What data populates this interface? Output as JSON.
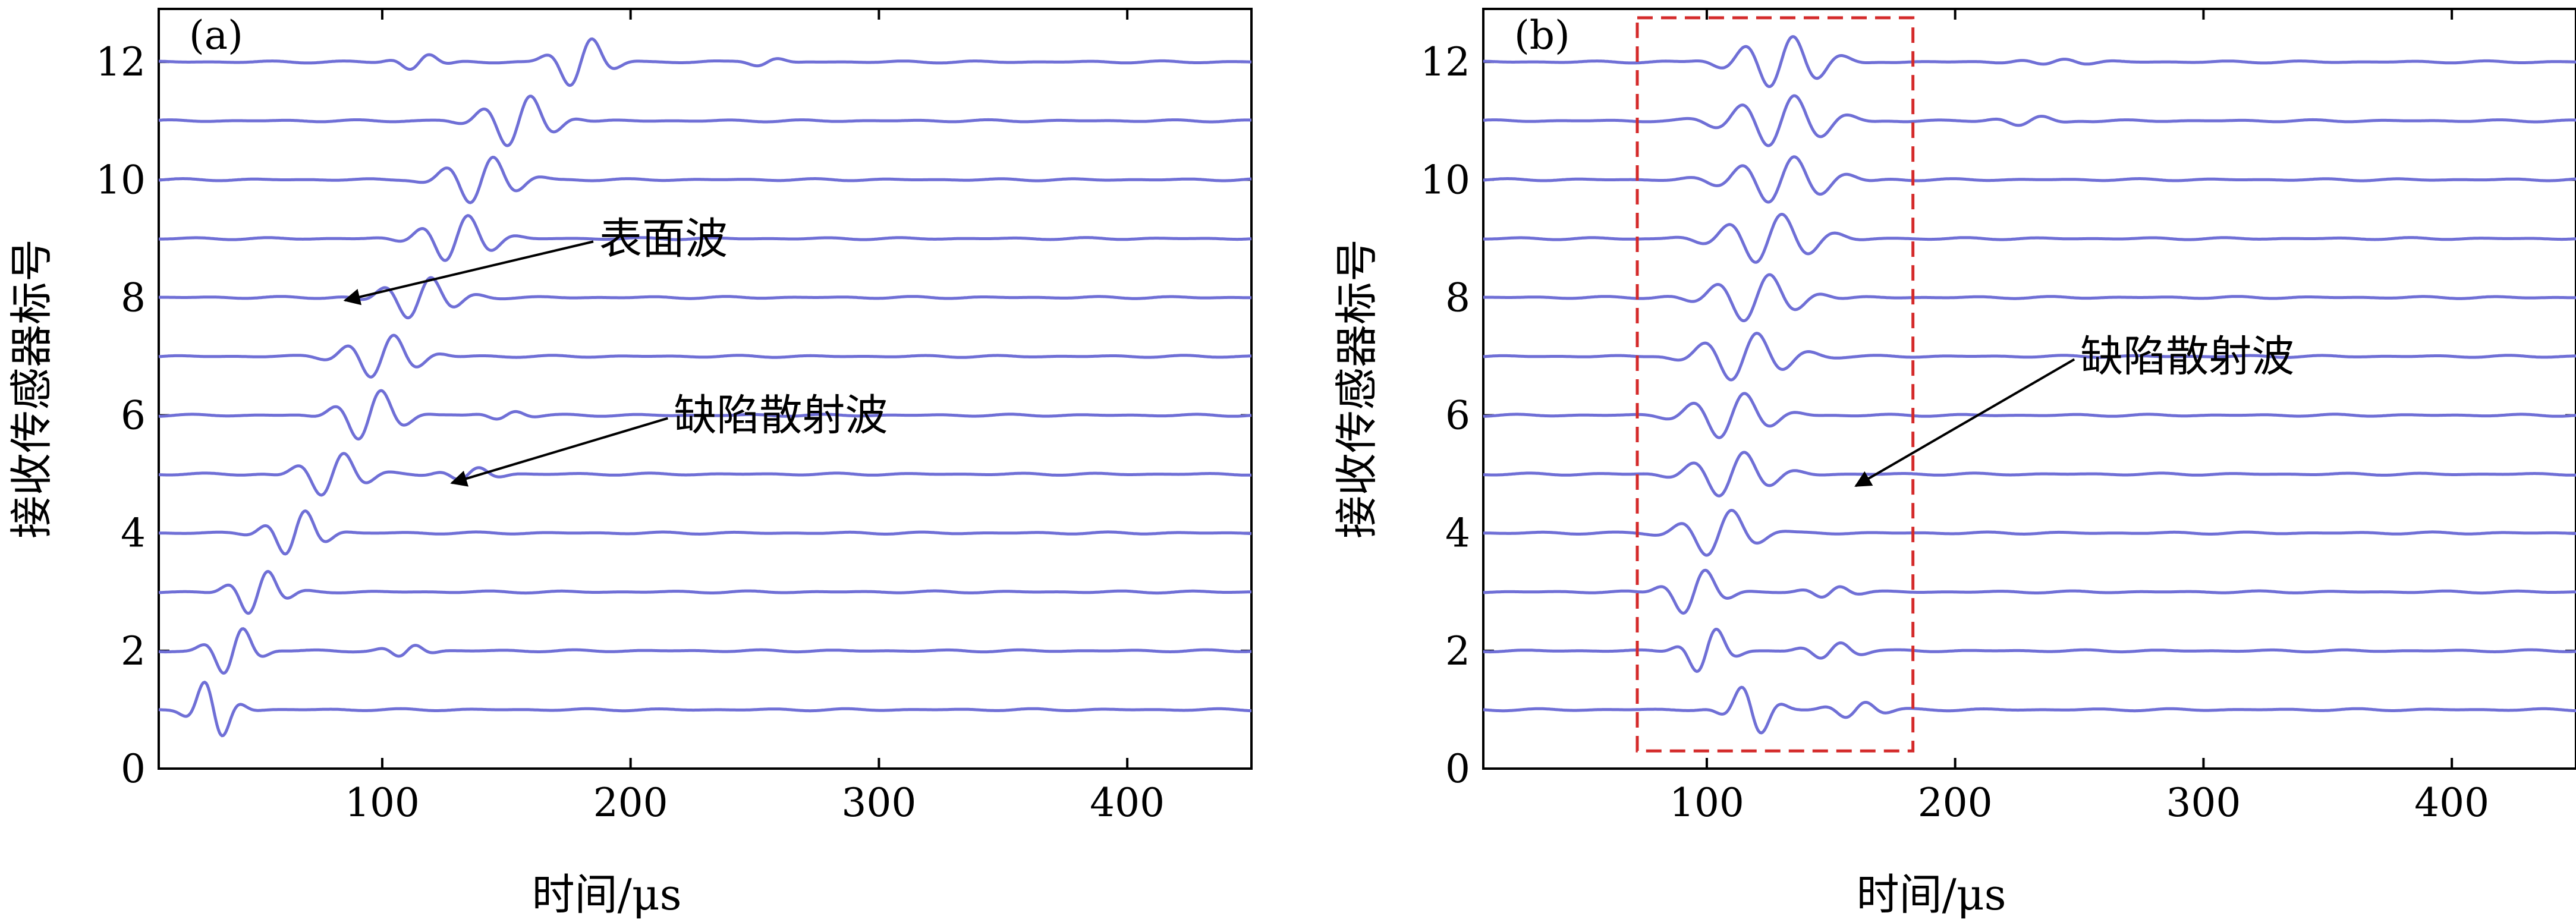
{
  "chart_data": [
    {
      "id": "a",
      "type": "line",
      "panel_label": "(a)",
      "xlabel": "时间/μs",
      "ylabel": "接收传感器标号",
      "xlim": [
        10,
        450
      ],
      "ylim": [
        0,
        12.9
      ],
      "xticks": [
        100,
        200,
        300,
        400
      ],
      "yticks": [
        0,
        2,
        4,
        6,
        8,
        10,
        12
      ],
      "series_color": "#6f6fd6",
      "series": [
        {
          "name": "1",
          "baseline": 1,
          "packets": [
            {
              "t0": 32,
              "amp": 0.55,
              "period": 17,
              "width": 9,
              "flip": -1
            }
          ]
        },
        {
          "name": "2",
          "baseline": 2,
          "packets": [
            {
              "t0": 40,
              "amp": 0.45,
              "period": 18,
              "width": 10,
              "flip": 1
            },
            {
              "t0": 110,
              "amp": 0.12,
              "period": 16,
              "width": 9,
              "flip": 1
            }
          ]
        },
        {
          "name": "3",
          "baseline": 3,
          "packets": [
            {
              "t0": 50,
              "amp": 0.42,
              "period": 18,
              "width": 11,
              "flip": 1
            }
          ]
        },
        {
          "name": "4",
          "baseline": 4,
          "packets": [
            {
              "t0": 65,
              "amp": 0.42,
              "period": 18,
              "width": 12,
              "flip": 1
            }
          ]
        },
        {
          "name": "5",
          "baseline": 5,
          "packets": [
            {
              "t0": 80,
              "amp": 0.4,
              "period": 20,
              "width": 14,
              "flip": 1
            },
            {
              "t0": 135,
              "amp": 0.12,
              "period": 18,
              "width": 12,
              "flip": 1
            }
          ]
        },
        {
          "name": "6",
          "baseline": 6,
          "packets": [
            {
              "t0": 95,
              "amp": 0.45,
              "period": 20,
              "width": 14,
              "flip": 1
            },
            {
              "t0": 150,
              "amp": 0.08,
              "period": 18,
              "width": 10,
              "flip": 1
            }
          ]
        },
        {
          "name": "7",
          "baseline": 7,
          "packets": [
            {
              "t0": 100,
              "amp": 0.4,
              "period": 20,
              "width": 16,
              "flip": 1
            }
          ]
        },
        {
          "name": "8",
          "baseline": 8,
          "packets": [
            {
              "t0": 115,
              "amp": 0.38,
              "period": 20,
              "width": 16,
              "flip": 1
            }
          ]
        },
        {
          "name": "9",
          "baseline": 9,
          "packets": [
            {
              "t0": 130,
              "amp": 0.42,
              "period": 20,
              "width": 16,
              "flip": 1
            }
          ]
        },
        {
          "name": "10",
          "baseline": 10,
          "packets": [
            {
              "t0": 140,
              "amp": 0.42,
              "period": 20,
              "width": 16,
              "flip": 1
            }
          ]
        },
        {
          "name": "11",
          "baseline": 11,
          "packets": [
            {
              "t0": 155,
              "amp": 0.45,
              "period": 20,
              "width": 16,
              "flip": 1
            }
          ]
        },
        {
          "name": "12",
          "baseline": 12,
          "packets": [
            {
              "t0": 180,
              "amp": 0.45,
              "period": 20,
              "width": 12,
              "flip": 1
            },
            {
              "t0": 115,
              "amp": 0.15,
              "period": 18,
              "width": 10,
              "flip": 1
            },
            {
              "t0": 255,
              "amp": 0.06,
              "period": 18,
              "width": 10,
              "flip": 1
            }
          ]
        }
      ],
      "annotations": [
        {
          "text": "表面波",
          "x_text": 185,
          "y_text": 9.0,
          "x_arrow": 85,
          "y_arrow": 7.95
        },
        {
          "text": "缺陷散射波",
          "x_text": 215,
          "y_text": 6.0,
          "x_arrow": 128,
          "y_arrow": 4.85
        }
      ]
    },
    {
      "id": "b",
      "type": "line",
      "panel_label": "(b)",
      "xlabel": "时间/μs",
      "ylabel": "接收传感器标号",
      "xlim": [
        10,
        450
      ],
      "ylim": [
        0,
        12.9
      ],
      "xticks": [
        100,
        200,
        300,
        400
      ],
      "yticks": [
        0,
        2,
        4,
        6,
        8,
        10,
        12
      ],
      "series_color": "#6f6fd6",
      "highlight_box": {
        "x0": 72,
        "x1": 183,
        "y0": 0.3,
        "y1": 12.75,
        "color": "#d42a2a"
      },
      "series": [
        {
          "name": "1",
          "baseline": 1,
          "packets": [
            {
              "t0": 118,
              "amp": 0.45,
              "period": 18,
              "width": 10,
              "flip": -1
            },
            {
              "t0": 160,
              "amp": 0.15,
              "period": 18,
              "width": 12,
              "flip": 1
            }
          ]
        },
        {
          "name": "2",
          "baseline": 2,
          "packets": [
            {
              "t0": 100,
              "amp": 0.42,
              "period": 18,
              "width": 10,
              "flip": 1
            },
            {
              "t0": 150,
              "amp": 0.15,
              "period": 18,
              "width": 12,
              "flip": 1
            }
          ]
        },
        {
          "name": "3",
          "baseline": 3,
          "packets": [
            {
              "t0": 95,
              "amp": 0.42,
              "period": 20,
              "width": 12,
              "flip": 1
            },
            {
              "t0": 150,
              "amp": 0.12,
              "period": 18,
              "width": 10,
              "flip": 1
            }
          ]
        },
        {
          "name": "4",
          "baseline": 4,
          "packets": [
            {
              "t0": 105,
              "amp": 0.42,
              "period": 22,
              "width": 16,
              "flip": 1
            }
          ]
        },
        {
          "name": "5",
          "baseline": 5,
          "packets": [
            {
              "t0": 110,
              "amp": 0.42,
              "period": 22,
              "width": 18,
              "flip": 1
            }
          ]
        },
        {
          "name": "6",
          "baseline": 6,
          "packets": [
            {
              "t0": 110,
              "amp": 0.42,
              "period": 22,
              "width": 18,
              "flip": 1
            }
          ]
        },
        {
          "name": "7",
          "baseline": 7,
          "packets": [
            {
              "t0": 115,
              "amp": 0.42,
              "period": 22,
              "width": 20,
              "flip": 1
            }
          ]
        },
        {
          "name": "8",
          "baseline": 8,
          "packets": [
            {
              "t0": 120,
              "amp": 0.42,
              "period": 22,
              "width": 20,
              "flip": 1
            }
          ]
        },
        {
          "name": "9",
          "baseline": 9,
          "packets": [
            {
              "t0": 125,
              "amp": 0.42,
              "period": 22,
              "width": 22,
              "flip": 1
            }
          ]
        },
        {
          "name": "10",
          "baseline": 10,
          "packets": [
            {
              "t0": 130,
              "amp": 0.42,
              "period": 22,
              "width": 22,
              "flip": 1
            }
          ]
        },
        {
          "name": "11",
          "baseline": 11,
          "packets": [
            {
              "t0": 130,
              "amp": 0.45,
              "period": 22,
              "width": 22,
              "flip": 1
            },
            {
              "t0": 230,
              "amp": 0.08,
              "period": 20,
              "width": 14,
              "flip": 1
            }
          ]
        },
        {
          "name": "12",
          "baseline": 12,
          "packets": [
            {
              "t0": 130,
              "amp": 0.45,
              "period": 20,
              "width": 20,
              "flip": 1
            },
            {
              "t0": 240,
              "amp": 0.06,
              "period": 20,
              "width": 16,
              "flip": 1
            }
          ]
        }
      ],
      "annotations": [
        {
          "text": "缺陷散射波",
          "x_text": 248,
          "y_text": 7.0,
          "x_arrow": 160,
          "y_arrow": 4.8
        }
      ]
    }
  ]
}
